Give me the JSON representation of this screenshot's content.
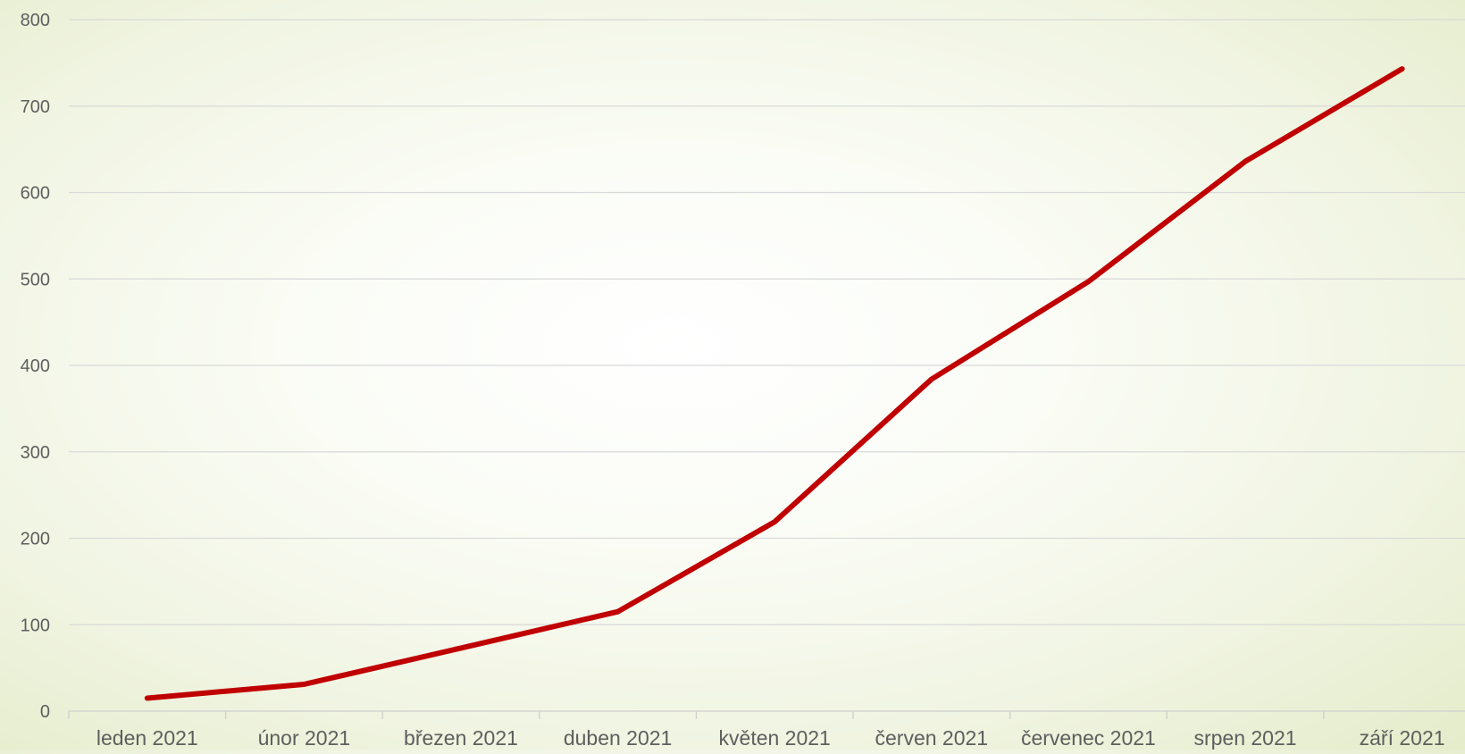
{
  "chart_data": {
    "type": "line",
    "title": "",
    "xlabel": "",
    "ylabel": "",
    "categories": [
      "leden 2021",
      "únor 2021",
      "březen 2021",
      "duben 2021",
      "květen 2021",
      "červen 2021",
      "červenec 2021",
      "srpen 2021",
      "září 2021"
    ],
    "series": [
      {
        "values": [
          15,
          31,
          73,
          115,
          219,
          384,
          497,
          636,
          743
        ],
        "color": "#c00000"
      }
    ],
    "ylim": [
      0,
      800
    ],
    "yticks": [
      0,
      100,
      200,
      300,
      400,
      500,
      600,
      700,
      800
    ],
    "grid": true,
    "legend": "none"
  }
}
